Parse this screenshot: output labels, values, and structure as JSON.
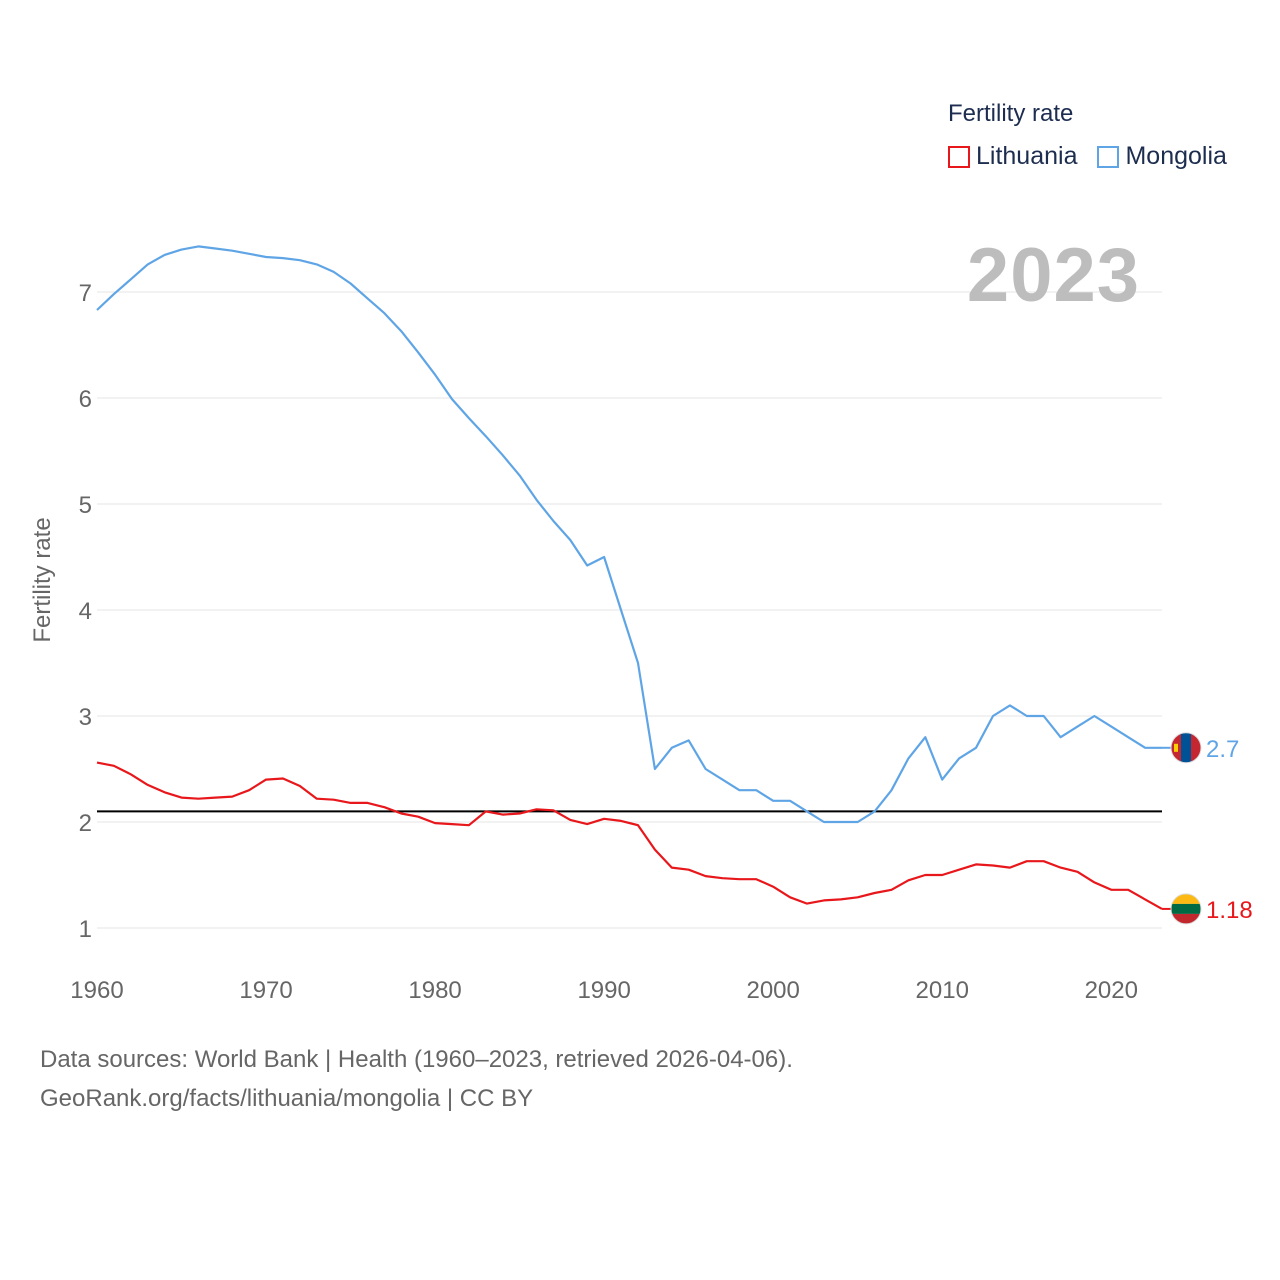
{
  "legend": {
    "title": "Fertility rate",
    "items": [
      {
        "name": "Lithuania",
        "color": "#e8171b"
      },
      {
        "name": "Mongolia",
        "color": "#5fa5e6"
      }
    ]
  },
  "year_label": "2023",
  "footer": {
    "line1": "Data sources: World Bank | Health (1960–2023, retrieved 2026-04-06).",
    "line2": "GeoRank.org/facts/lithuania/mongolia | CC BY"
  },
  "chart_data": {
    "type": "line",
    "title": "Fertility rate",
    "xlabel": "",
    "ylabel": "Fertility rate",
    "xlim": [
      1960,
      2023
    ],
    "ylim": [
      1,
      7
    ],
    "x_ticks": [
      1960,
      1970,
      1980,
      1990,
      2000,
      2010,
      2020
    ],
    "y_ticks": [
      1,
      2,
      3,
      4,
      5,
      6,
      7
    ],
    "grid": true,
    "reference_line": {
      "y": 2.1,
      "color": "#000000"
    },
    "x": [
      1960,
      1961,
      1962,
      1963,
      1964,
      1965,
      1966,
      1967,
      1968,
      1969,
      1970,
      1971,
      1972,
      1973,
      1974,
      1975,
      1976,
      1977,
      1978,
      1979,
      1980,
      1981,
      1982,
      1983,
      1984,
      1985,
      1986,
      1987,
      1988,
      1989,
      1990,
      1991,
      1992,
      1993,
      1994,
      1995,
      1996,
      1997,
      1998,
      1999,
      2000,
      2001,
      2002,
      2003,
      2004,
      2005,
      2006,
      2007,
      2008,
      2009,
      2010,
      2011,
      2012,
      2013,
      2014,
      2015,
      2016,
      2017,
      2018,
      2019,
      2020,
      2021,
      2022,
      2023
    ],
    "series": [
      {
        "name": "Lithuania",
        "color": "#e8171b",
        "end_label": "1.18",
        "values": [
          2.56,
          2.53,
          2.45,
          2.35,
          2.28,
          2.23,
          2.22,
          2.23,
          2.24,
          2.3,
          2.4,
          2.41,
          2.34,
          2.22,
          2.21,
          2.18,
          2.18,
          2.14,
          2.08,
          2.05,
          1.99,
          1.98,
          1.97,
          2.1,
          2.07,
          2.08,
          2.12,
          2.11,
          2.02,
          1.98,
          2.03,
          2.01,
          1.97,
          1.74,
          1.57,
          1.55,
          1.49,
          1.47,
          1.46,
          1.46,
          1.39,
          1.29,
          1.23,
          1.26,
          1.27,
          1.29,
          1.33,
          1.36,
          1.45,
          1.5,
          1.5,
          1.55,
          1.6,
          1.59,
          1.57,
          1.63,
          1.63,
          1.57,
          1.53,
          1.43,
          1.36,
          1.36,
          1.27,
          1.18
        ]
      },
      {
        "name": "Mongolia",
        "color": "#5fa5e6",
        "end_label": "2.7",
        "values": [
          6.83,
          6.98,
          7.12,
          7.26,
          7.35,
          7.4,
          7.43,
          7.41,
          7.39,
          7.36,
          7.33,
          7.32,
          7.3,
          7.26,
          7.19,
          7.08,
          6.94,
          6.8,
          6.63,
          6.43,
          6.22,
          5.99,
          5.81,
          5.64,
          5.46,
          5.27,
          5.04,
          4.84,
          4.66,
          4.42,
          4.5,
          4.0,
          3.5,
          2.5,
          2.7,
          2.77,
          2.5,
          2.4,
          2.3,
          2.3,
          2.2,
          2.2,
          2.1,
          2.0,
          2.0,
          2.0,
          2.1,
          2.3,
          2.6,
          2.8,
          2.4,
          2.6,
          2.7,
          3.0,
          3.1,
          3.0,
          3.0,
          2.8,
          2.9,
          3.0,
          2.9,
          2.8,
          2.7,
          2.7
        ]
      }
    ]
  }
}
